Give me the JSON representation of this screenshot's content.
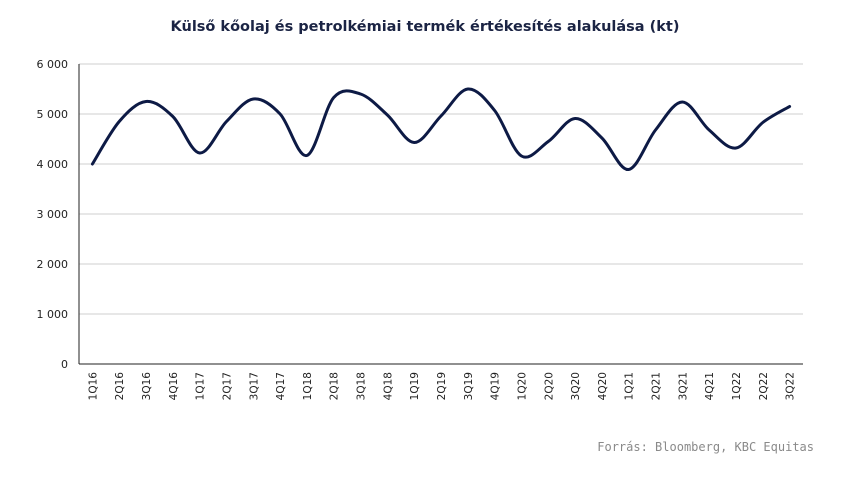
{
  "chart_data": {
    "type": "line",
    "title": "Külső kőolaj és petrolkémiai termék értékesítés alakulása (kt)",
    "categories": [
      "1Q16",
      "2Q16",
      "3Q16",
      "4Q16",
      "1Q17",
      "2Q17",
      "3Q17",
      "4Q17",
      "1Q18",
      "2Q18",
      "3Q18",
      "4Q18",
      "1Q19",
      "2Q19",
      "3Q19",
      "4Q19",
      "1Q20",
      "2Q20",
      "3Q20",
      "4Q20",
      "1Q21",
      "2Q21",
      "3Q21",
      "4Q21",
      "1Q22",
      "2Q22",
      "3Q22"
    ],
    "series": [
      {
        "values": [
          4000,
          4850,
          5250,
          4950,
          4220,
          4850,
          5300,
          5000,
          4170,
          5330,
          5400,
          4980,
          4430,
          4960,
          5500,
          5070,
          4160,
          4450,
          4910,
          4520,
          3890,
          4680,
          5240,
          4680,
          4320,
          4830,
          5150
        ],
        "color": "#0d1a45"
      }
    ],
    "yticks": [
      0,
      1000,
      2000,
      3000,
      4000,
      5000,
      6000
    ],
    "ytick_labels": [
      "0",
      "1 000",
      "2 000",
      "3 000",
      "4 000",
      "5 000",
      "6 000"
    ],
    "ylim": [
      0,
      6000
    ],
    "xlabel": "",
    "ylabel": "",
    "grid": true,
    "legend": "none"
  },
  "source": "Forrás: Bloomberg, KBC Equitas"
}
